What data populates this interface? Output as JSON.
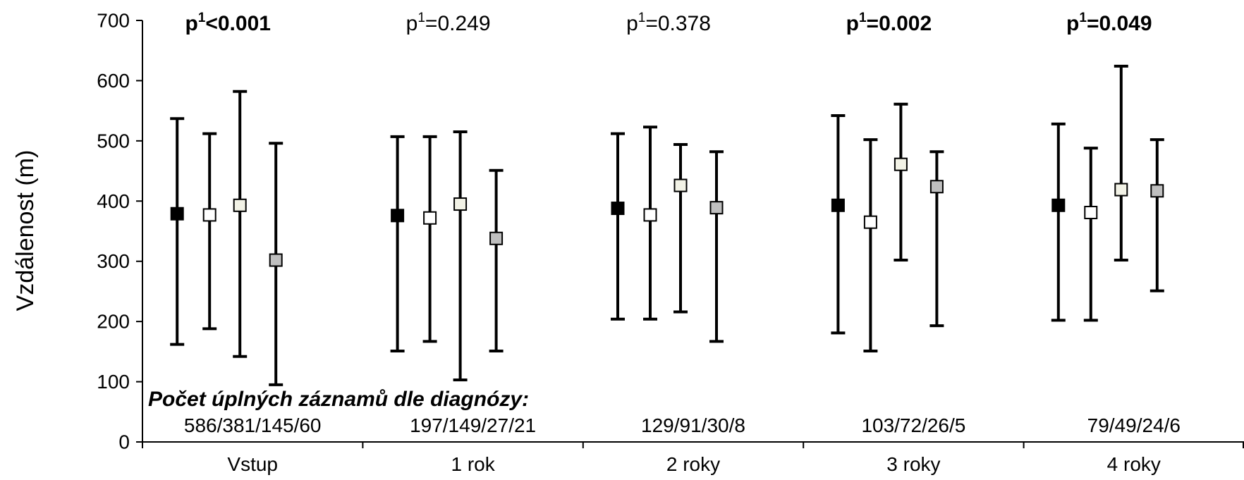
{
  "chart_data": {
    "type": "scatter",
    "title": "",
    "xlabel": "",
    "ylabel": "Vzdálenost (m)",
    "ylim": [
      0,
      700
    ],
    "yticks": [
      0,
      100,
      200,
      300,
      400,
      500,
      600,
      700
    ],
    "categories": [
      "Vstup",
      "1 rok",
      "2 roky",
      "3 roky",
      "4 roky"
    ],
    "legend": "none",
    "grid": false,
    "series": [
      {
        "color": "#000000",
        "values": [
          379,
          376,
          388,
          393,
          393
        ],
        "lower": [
          162,
          151,
          204,
          181,
          202
        ],
        "upper": [
          537,
          507,
          512,
          542,
          528
        ]
      },
      {
        "color": "#ffffff",
        "values": [
          377,
          372,
          377,
          365,
          381
        ],
        "lower": [
          188,
          167,
          204,
          151,
          202
        ],
        "upper": [
          512,
          507,
          523,
          502,
          488
        ]
      },
      {
        "color": "#f2f2e6",
        "values": [
          393,
          395,
          426,
          461,
          419
        ],
        "lower": [
          142,
          103,
          216,
          302,
          302
        ],
        "upper": [
          582,
          515,
          494,
          561,
          624
        ]
      },
      {
        "color": "#bfbfbf",
        "values": [
          302,
          338,
          389,
          424,
          417
        ],
        "lower": [
          95,
          151,
          167,
          193,
          251
        ],
        "upper": [
          496,
          451,
          482,
          482,
          502
        ]
      }
    ],
    "counts_title": "Počet úplných záznamů dle diagnózy:",
    "counts": [
      "586/381/145/60",
      "197/149/27/21",
      "129/91/30/8",
      "103/72/26/5",
      "79/49/24/6"
    ],
    "p_values": [
      {
        "prefix": "p",
        "sup": "1",
        "value": "<0.001",
        "bold": true
      },
      {
        "prefix": "p",
        "sup": "1",
        "value": "=0.249",
        "bold": false
      },
      {
        "prefix": "p",
        "sup": "1",
        "value": "=0.378",
        "bold": false
      },
      {
        "prefix": "p",
        "sup": "1",
        "value": "=0.002",
        "bold": true
      },
      {
        "prefix": "p",
        "sup": "1",
        "value": "=0.049",
        "bold": true
      }
    ]
  }
}
